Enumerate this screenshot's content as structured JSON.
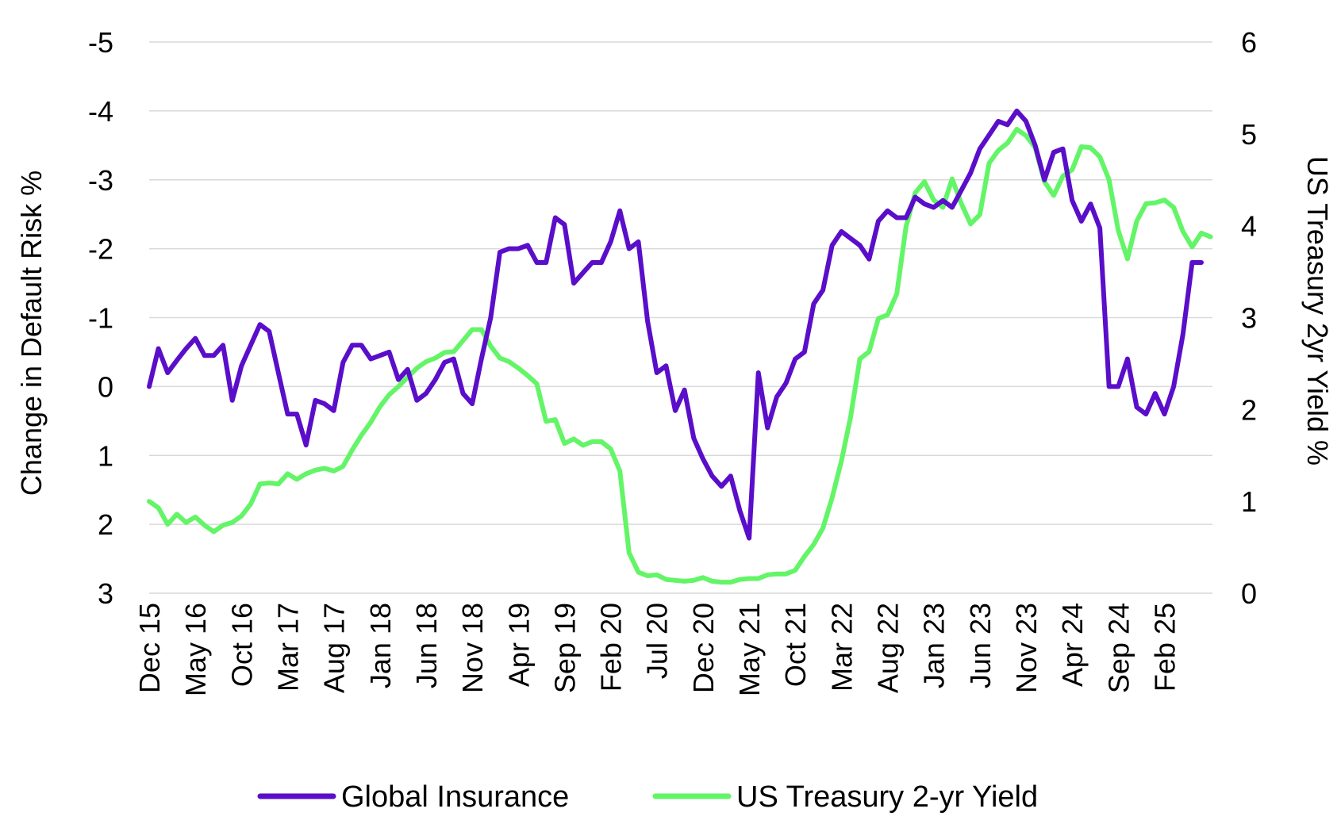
{
  "chart_data": {
    "type": "line",
    "ylabel_left": "Change in Default Risk %",
    "ylabel_right": "US Treasury 2yr Yield %",
    "y_left_ticks": [
      "-5",
      "-4",
      "-3",
      "-2",
      "-1",
      "0",
      "1",
      "2",
      "3"
    ],
    "y_right_ticks": [
      "6",
      "5",
      "4",
      "3",
      "2",
      "1",
      "0"
    ],
    "y_left_range": [
      3,
      -5
    ],
    "y_left_inverted": true,
    "y_right_range": [
      0,
      6
    ],
    "x_tick_labels": [
      "Dec 15",
      "May 16",
      "Oct 16",
      "Mar 17",
      "Aug 17",
      "Jan 18",
      "Jun 18",
      "Nov 18",
      "Apr 19",
      "Sep 19",
      "Feb 20",
      "Jul 20",
      "Dec 20",
      "May 21",
      "Oct 21",
      "Mar 22",
      "Aug 22",
      "Jan 23",
      "Jun 23",
      "Nov 23",
      "Apr 24",
      "Sep 24",
      "Feb 25"
    ],
    "x_start": "Dec 15",
    "x_frequency": "monthly",
    "grid": "horizontal",
    "legend_position": "bottom",
    "series": [
      {
        "name": "Global Insurance",
        "axis": "left",
        "color": "#5a0ec9",
        "values": [
          0,
          -0.55,
          -0.2,
          -0.38,
          -0.55,
          -0.7,
          -0.45,
          -0.45,
          -0.6,
          0.2,
          -0.3,
          -0.6,
          -0.9,
          -0.8,
          -0.2,
          0.4,
          0.4,
          0.85,
          0.2,
          0.25,
          0.35,
          -0.35,
          -0.6,
          -0.6,
          -0.4,
          -0.45,
          -0.5,
          -0.1,
          -0.25,
          0.2,
          0.1,
          -0.1,
          -0.35,
          -0.4,
          0.1,
          0.25,
          -0.4,
          -1.0,
          -1.95,
          -2.0,
          -2.0,
          -2.05,
          -1.8,
          -1.8,
          -2.45,
          -2.35,
          -1.5,
          -1.65,
          -1.8,
          -1.8,
          -2.1,
          -2.55,
          -2.0,
          -2.1,
          -0.95,
          -0.2,
          -0.3,
          0.35,
          0.05,
          0.75,
          1.05,
          1.3,
          1.45,
          1.3,
          1.8,
          2.2,
          -0.2,
          0.6,
          0.15,
          -0.05,
          -0.4,
          -0.5,
          -1.2,
          -1.4,
          -2.05,
          -2.25,
          -2.15,
          -2.05,
          -1.85,
          -2.4,
          -2.55,
          -2.45,
          -2.45,
          -2.75,
          -2.65,
          -2.6,
          -2.7,
          -2.6,
          -2.85,
          -3.1,
          -3.45,
          -3.65,
          -3.85,
          -3.8,
          -4.0,
          -3.85,
          -3.5,
          -3.0,
          -3.4,
          -3.45,
          -2.7,
          -2.4,
          -2.65,
          -2.3,
          0,
          0,
          -0.4,
          0.3,
          0.4,
          0.1,
          0.4,
          0,
          -0.75,
          -1.8,
          -1.8
        ]
      },
      {
        "name": "US Treasury 2-yr Yield",
        "axis": "right",
        "color": "#63f567",
        "values": [
          1.0,
          0.93,
          0.75,
          0.86,
          0.77,
          0.83,
          0.74,
          0.67,
          0.74,
          0.77,
          0.84,
          0.97,
          1.19,
          1.2,
          1.19,
          1.3,
          1.24,
          1.3,
          1.34,
          1.36,
          1.33,
          1.38,
          1.56,
          1.72,
          1.86,
          2.03,
          2.16,
          2.25,
          2.35,
          2.45,
          2.52,
          2.56,
          2.62,
          2.63,
          2.75,
          2.87,
          2.87,
          2.69,
          2.56,
          2.52,
          2.45,
          2.37,
          2.28,
          1.87,
          1.89,
          1.63,
          1.68,
          1.61,
          1.65,
          1.65,
          1.57,
          1.33,
          0.44,
          0.23,
          0.19,
          0.2,
          0.15,
          0.14,
          0.13,
          0.14,
          0.17,
          0.13,
          0.12,
          0.12,
          0.15,
          0.16,
          0.16,
          0.2,
          0.21,
          0.21,
          0.25,
          0.4,
          0.53,
          0.71,
          1.04,
          1.44,
          1.92,
          2.55,
          2.63,
          2.99,
          3.03,
          3.26,
          3.99,
          4.36,
          4.48,
          4.28,
          4.2,
          4.51,
          4.24,
          4.02,
          4.12,
          4.68,
          4.82,
          4.9,
          5.05,
          4.98,
          4.85,
          4.48,
          4.33,
          4.54,
          4.61,
          4.86,
          4.85,
          4.75,
          4.5,
          3.95,
          3.64,
          4.05,
          4.24,
          4.25,
          4.28,
          4.2,
          3.94,
          3.77,
          3.92,
          3.88
        ]
      }
    ]
  }
}
